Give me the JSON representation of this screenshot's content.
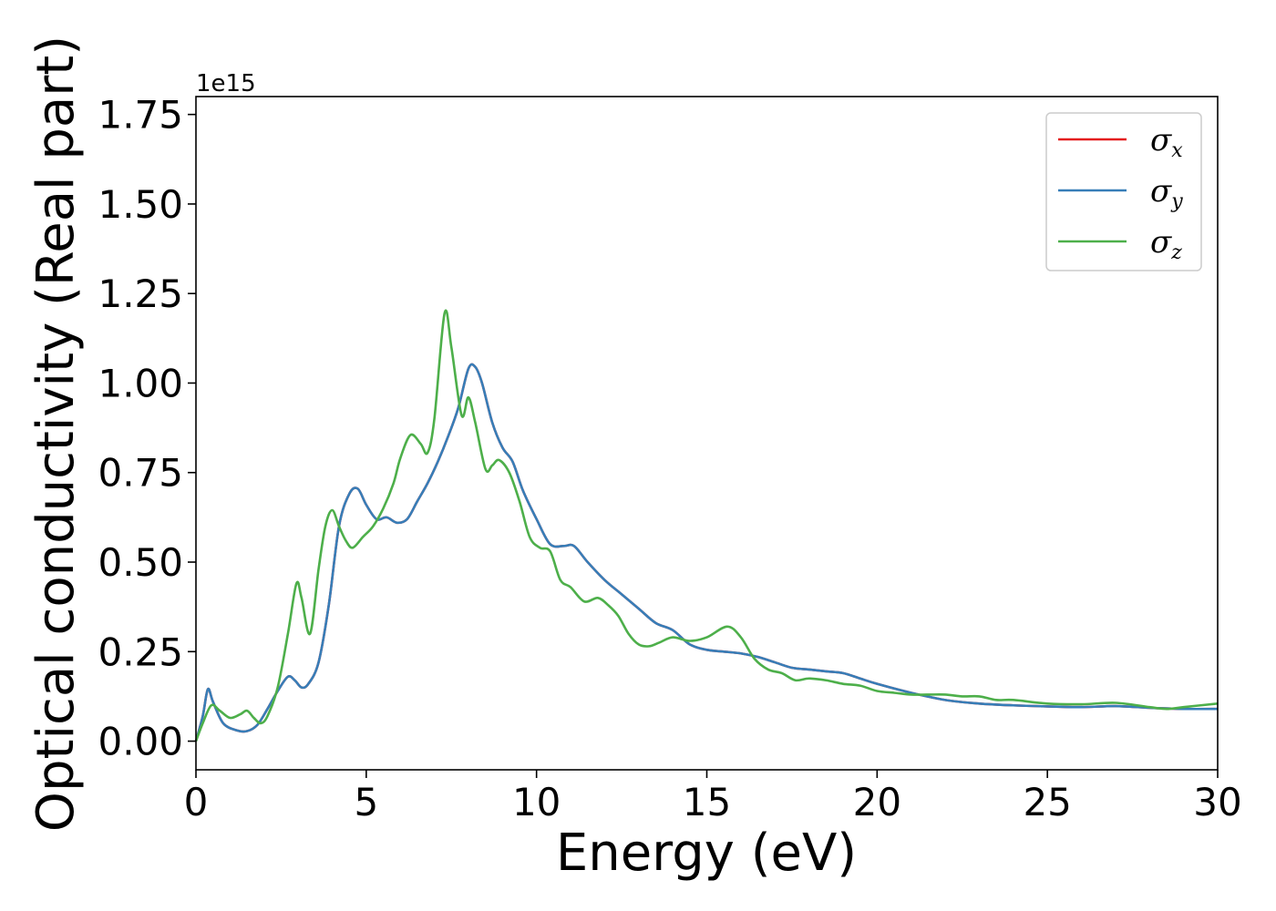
{
  "chart_data": {
    "type": "line",
    "title": "",
    "xlabel": "Energy (eV)",
    "ylabel": "Optical conductivity (Real part)",
    "y_offset_label": "1e15",
    "xlim": [
      0,
      30
    ],
    "ylim": [
      -0.08,
      1.8
    ],
    "x_ticks": [
      0,
      5,
      10,
      15,
      20,
      25,
      30
    ],
    "x_tick_labels": [
      "0",
      "5",
      "10",
      "15",
      "20",
      "25",
      "30"
    ],
    "y_ticks": [
      0.0,
      0.25,
      0.5,
      0.75,
      1.0,
      1.25,
      1.5,
      1.75
    ],
    "y_tick_labels": [
      "0.00",
      "0.25",
      "0.50",
      "0.75",
      "1.00",
      "1.25",
      "1.50",
      "1.75"
    ],
    "grid": false,
    "legend_position": "top-right",
    "series": [
      {
        "name": "σx",
        "symbol": "σ",
        "subscript": "x",
        "color": "#e41a1c",
        "x": [
          0,
          0.2,
          0.35,
          0.5,
          0.8,
          1.2,
          1.5,
          1.8,
          2.1,
          2.4,
          2.7,
          2.9,
          3.1,
          3.3,
          3.6,
          3.9,
          4.2,
          4.5,
          4.75,
          5.0,
          5.3,
          5.6,
          5.9,
          6.2,
          6.5,
          6.8,
          7.1,
          7.4,
          7.7,
          8.0,
          8.2,
          8.4,
          8.7,
          9.0,
          9.3,
          9.6,
          10.0,
          10.4,
          10.8,
          11.1,
          11.5,
          12.0,
          12.5,
          13.0,
          13.5,
          14.0,
          14.5,
          15.0,
          15.5,
          16.0,
          16.5,
          17.0,
          17.5,
          18.0,
          18.5,
          19.0,
          19.5,
          20.0,
          21.0,
          22.0,
          23.0,
          24.0,
          25.0,
          26.0,
          27.0,
          28.0,
          29.0,
          30.0
        ],
        "y": [
          0.0,
          0.07,
          0.145,
          0.11,
          0.05,
          0.03,
          0.028,
          0.045,
          0.09,
          0.14,
          0.18,
          0.17,
          0.15,
          0.16,
          0.22,
          0.38,
          0.6,
          0.69,
          0.705,
          0.66,
          0.62,
          0.625,
          0.61,
          0.62,
          0.67,
          0.72,
          0.78,
          0.85,
          0.93,
          1.04,
          1.045,
          1.0,
          0.89,
          0.82,
          0.78,
          0.7,
          0.62,
          0.55,
          0.545,
          0.545,
          0.5,
          0.45,
          0.41,
          0.37,
          0.33,
          0.31,
          0.27,
          0.255,
          0.25,
          0.245,
          0.235,
          0.22,
          0.205,
          0.2,
          0.195,
          0.19,
          0.175,
          0.16,
          0.135,
          0.115,
          0.105,
          0.1,
          0.097,
          0.095,
          0.098,
          0.093,
          0.09,
          0.09
        ]
      },
      {
        "name": "σy",
        "symbol": "σ",
        "subscript": "y",
        "color": "#377eb8",
        "x": [
          0,
          0.2,
          0.35,
          0.5,
          0.8,
          1.2,
          1.5,
          1.8,
          2.1,
          2.4,
          2.7,
          2.9,
          3.1,
          3.3,
          3.6,
          3.9,
          4.2,
          4.5,
          4.75,
          5.0,
          5.3,
          5.6,
          5.9,
          6.2,
          6.5,
          6.8,
          7.1,
          7.4,
          7.7,
          8.0,
          8.2,
          8.4,
          8.7,
          9.0,
          9.3,
          9.6,
          10.0,
          10.4,
          10.8,
          11.1,
          11.5,
          12.0,
          12.5,
          13.0,
          13.5,
          14.0,
          14.5,
          15.0,
          15.5,
          16.0,
          16.5,
          17.0,
          17.5,
          18.0,
          18.5,
          19.0,
          19.5,
          20.0,
          21.0,
          22.0,
          23.0,
          24.0,
          25.0,
          26.0,
          27.0,
          28.0,
          29.0,
          30.0
        ],
        "y": [
          0.0,
          0.07,
          0.145,
          0.11,
          0.05,
          0.03,
          0.028,
          0.045,
          0.09,
          0.14,
          0.18,
          0.17,
          0.15,
          0.16,
          0.22,
          0.38,
          0.6,
          0.69,
          0.705,
          0.66,
          0.62,
          0.625,
          0.61,
          0.62,
          0.67,
          0.72,
          0.78,
          0.85,
          0.93,
          1.04,
          1.045,
          1.0,
          0.89,
          0.82,
          0.78,
          0.7,
          0.62,
          0.55,
          0.545,
          0.545,
          0.5,
          0.45,
          0.41,
          0.37,
          0.33,
          0.31,
          0.27,
          0.255,
          0.25,
          0.245,
          0.235,
          0.22,
          0.205,
          0.2,
          0.195,
          0.19,
          0.175,
          0.16,
          0.135,
          0.115,
          0.105,
          0.1,
          0.097,
          0.095,
          0.098,
          0.093,
          0.09,
          0.09
        ]
      },
      {
        "name": "σz",
        "symbol": "σ",
        "subscript": "z",
        "color": "#4daf4a",
        "x": [
          0,
          0.2,
          0.45,
          0.7,
          1.0,
          1.3,
          1.5,
          1.7,
          1.9,
          2.1,
          2.4,
          2.7,
          2.95,
          3.1,
          3.35,
          3.6,
          3.8,
          4.0,
          4.2,
          4.4,
          4.6,
          4.9,
          5.2,
          5.5,
          5.8,
          6.0,
          6.3,
          6.6,
          6.8,
          7.0,
          7.3,
          7.5,
          7.8,
          8.0,
          8.2,
          8.5,
          8.7,
          8.9,
          9.2,
          9.5,
          9.8,
          10.1,
          10.4,
          10.7,
          11.0,
          11.4,
          11.8,
          12.1,
          12.4,
          12.7,
          13.0,
          13.3,
          13.6,
          14.0,
          14.5,
          15.0,
          15.6,
          16.0,
          16.4,
          16.8,
          17.2,
          17.6,
          18.0,
          18.5,
          19.0,
          19.5,
          20.0,
          20.5,
          21.0,
          21.5,
          22.0,
          22.5,
          23.0,
          23.5,
          24.0,
          25.0,
          26.0,
          27.0,
          28.0,
          28.5,
          29.0,
          30.0
        ],
        "y": [
          0.0,
          0.05,
          0.1,
          0.085,
          0.065,
          0.075,
          0.085,
          0.065,
          0.05,
          0.07,
          0.15,
          0.3,
          0.44,
          0.4,
          0.3,
          0.48,
          0.6,
          0.645,
          0.6,
          0.56,
          0.54,
          0.57,
          0.6,
          0.65,
          0.72,
          0.79,
          0.855,
          0.83,
          0.805,
          0.9,
          1.195,
          1.1,
          0.91,
          0.96,
          0.89,
          0.76,
          0.77,
          0.785,
          0.75,
          0.67,
          0.57,
          0.54,
          0.53,
          0.45,
          0.43,
          0.39,
          0.4,
          0.38,
          0.35,
          0.3,
          0.27,
          0.265,
          0.275,
          0.29,
          0.28,
          0.29,
          0.32,
          0.29,
          0.23,
          0.2,
          0.19,
          0.17,
          0.175,
          0.17,
          0.16,
          0.155,
          0.14,
          0.135,
          0.13,
          0.13,
          0.13,
          0.125,
          0.125,
          0.115,
          0.115,
          0.105,
          0.103,
          0.107,
          0.095,
          0.09,
          0.095,
          0.105
        ]
      }
    ]
  }
}
